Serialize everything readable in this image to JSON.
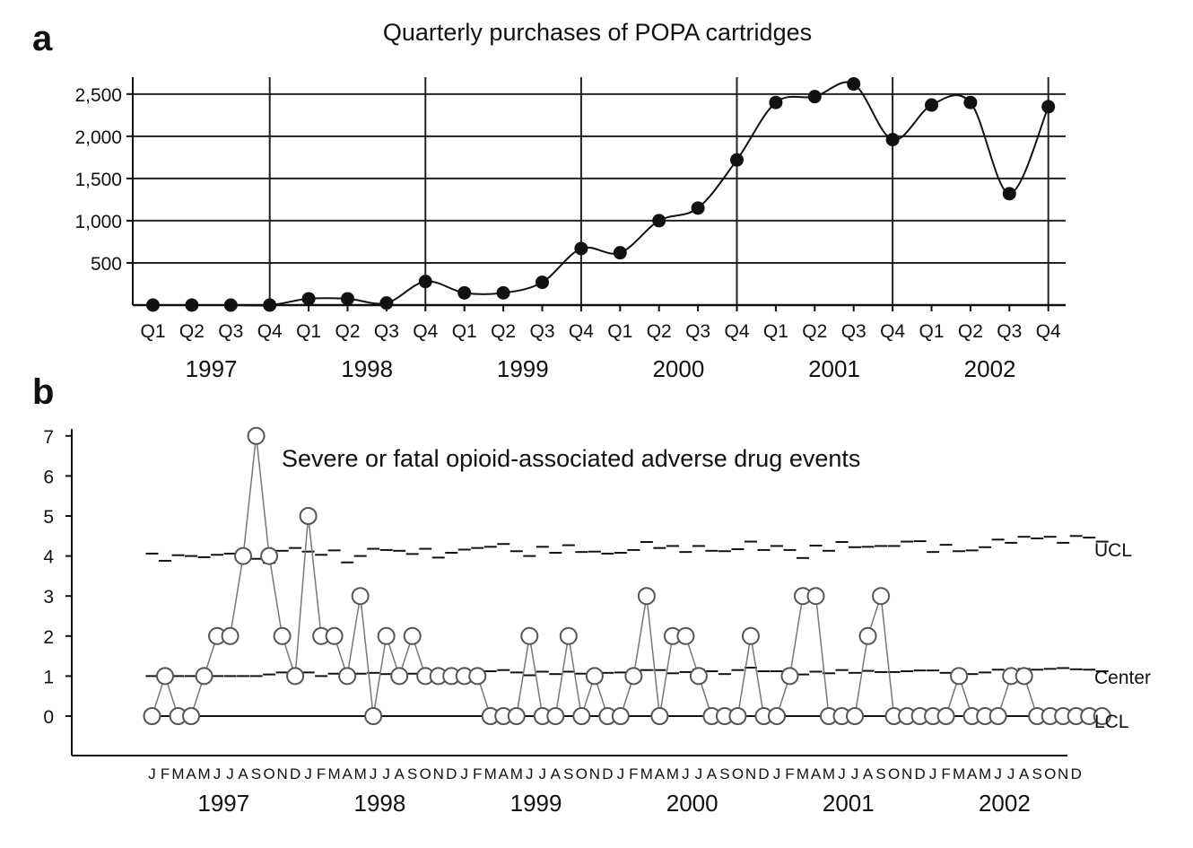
{
  "chart_data": [
    {
      "panel": "a",
      "type": "line",
      "title": "Quarterly purchases of POPA cartridges",
      "ylim": [
        0,
        2700
      ],
      "yticks": [
        500,
        1000,
        1500,
        2000,
        2500
      ],
      "ytick_labels": [
        "500",
        "1,000",
        "1,500",
        "2,000",
        "2,500"
      ],
      "quarter_labels": [
        "Q1",
        "Q2",
        "Q3",
        "Q4"
      ],
      "years": [
        "1997",
        "1998",
        "1999",
        "2000",
        "2001",
        "2002"
      ],
      "grid": true,
      "series": [
        {
          "values": [
            0,
            0,
            0,
            0,
            75,
            75,
            25,
            280,
            145,
            145,
            270,
            670,
            620,
            1000,
            1150,
            1720,
            2400,
            2470,
            2620,
            1960,
            2370,
            2400,
            1320,
            2350
          ]
        }
      ]
    },
    {
      "panel": "b",
      "type": "line",
      "title": "Severe or fatal opioid-associated adverse drug events",
      "ylim": [
        -0.8,
        7.1
      ],
      "yticks": [
        0,
        1,
        2,
        3,
        4,
        5,
        6,
        7
      ],
      "month_labels": [
        "J",
        "F",
        "M",
        "A",
        "M",
        "J",
        "J",
        "A",
        "S",
        "O",
        "N",
        "D"
      ],
      "years": [
        "1997",
        "1998",
        "1999",
        "2000",
        "2001",
        "2002"
      ],
      "series": [
        {
          "values": [
            0,
            1,
            0,
            0,
            1,
            2,
            2,
            4,
            7,
            4,
            2,
            1,
            5,
            2,
            2,
            1,
            3,
            0,
            2,
            1,
            2,
            1,
            1,
            1,
            1,
            1,
            0,
            0,
            0,
            2,
            0,
            0,
            2,
            0,
            1,
            0,
            0,
            1,
            3,
            0,
            2,
            2,
            1,
            0,
            0,
            0,
            2,
            0,
            0,
            1,
            3,
            3,
            0,
            0,
            0,
            2,
            3,
            0,
            0,
            0,
            0,
            0,
            1,
            0,
            0,
            0,
            1,
            1,
            0,
            0,
            0,
            0,
            0,
            0
          ]
        }
      ],
      "control_lines": [
        {
          "name": "UCL",
          "values": [
            4.06,
            3.88,
            4.02,
            4.0,
            3.97,
            4.03,
            4.06,
            4.09,
            3.93,
            3.83,
            4.13,
            4.2,
            4.11,
            4.03,
            4.14,
            3.84,
            4.0,
            4.18,
            4.15,
            4.13,
            4.05,
            4.18,
            3.96,
            4.08,
            4.16,
            4.2,
            4.23,
            4.3,
            4.12,
            4.0,
            4.23,
            4.08,
            4.27,
            4.1,
            4.11,
            4.06,
            4.08,
            4.15,
            4.35,
            4.2,
            4.25,
            4.1,
            4.25,
            4.13,
            4.12,
            4.17,
            4.36,
            4.15,
            4.25,
            4.15,
            3.95,
            4.26,
            4.13,
            4.35,
            4.22,
            4.23,
            4.25,
            4.25,
            4.36,
            4.37,
            4.1,
            4.28,
            4.12,
            4.14,
            4.22,
            4.41,
            4.33,
            4.48,
            4.44,
            4.48,
            4.33,
            4.5,
            4.46,
            4.36
          ]
        },
        {
          "name": "Center",
          "values": [
            1.0,
            1.0,
            1.0,
            1.0,
            1.0,
            1.0,
            1.0,
            1.0,
            1.0,
            1.04,
            1.09,
            1.02,
            1.09,
            1.0,
            1.06,
            1.09,
            1.06,
            1.08,
            1.05,
            1.08,
            1.06,
            1.1,
            1.08,
            1.07,
            1.07,
            1.1,
            1.12,
            1.15,
            1.09,
            1.02,
            1.11,
            1.05,
            1.11,
            1.06,
            1.07,
            1.08,
            1.09,
            1.1,
            1.15,
            1.15,
            1.07,
            1.1,
            1.16,
            1.12,
            1.05,
            1.15,
            1.21,
            1.12,
            1.12,
            1.06,
            1.04,
            1.11,
            1.07,
            1.15,
            1.08,
            1.13,
            1.1,
            1.1,
            1.12,
            1.14,
            1.14,
            1.08,
            1.1,
            1.05,
            1.09,
            1.16,
            1.12,
            1.18,
            1.16,
            1.18,
            1.2,
            1.17,
            1.16,
            1.12
          ]
        },
        {
          "name": "LCL",
          "values": [
            0,
            0,
            0,
            0,
            0,
            0,
            0,
            0,
            0,
            0,
            0,
            0,
            0,
            0,
            0,
            0,
            0,
            0,
            0,
            0,
            0,
            0,
            0,
            0,
            0,
            0,
            0,
            0,
            0,
            0,
            0,
            0,
            0,
            0,
            0,
            0,
            0,
            0,
            0,
            0,
            0,
            0,
            0,
            0,
            0,
            0,
            0,
            0,
            0,
            0,
            0,
            0,
            0,
            0,
            0,
            0,
            0,
            0,
            0,
            0,
            0,
            0,
            0,
            0,
            0,
            0,
            0,
            0,
            0,
            0,
            0,
            0,
            0,
            0
          ]
        }
      ]
    }
  ]
}
